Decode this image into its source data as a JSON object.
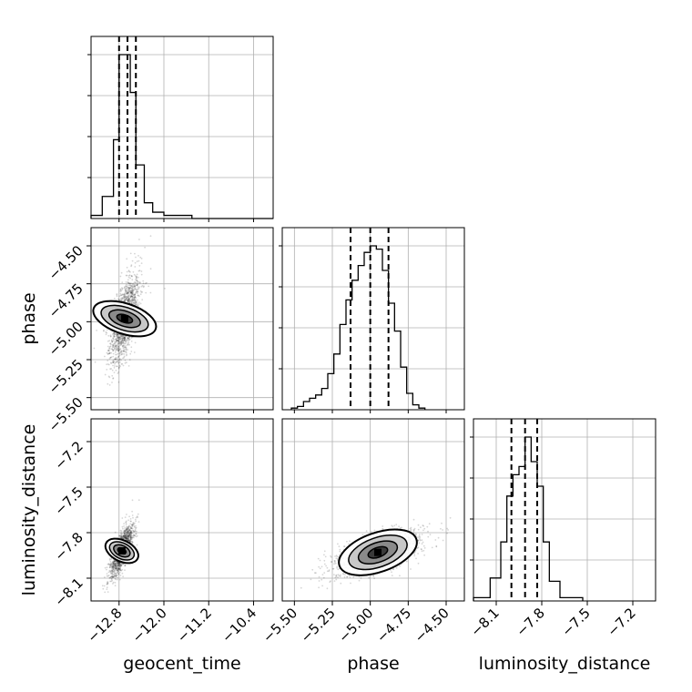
{
  "chart_data": {
    "type": "corner",
    "parameters": [
      "geocent_time",
      "phase",
      "luminosity_distance"
    ],
    "axis_labels": {
      "x": [
        "geocent_time",
        "phase",
        "luminosity_distance"
      ],
      "y": [
        "",
        "phase",
        "luminosity_distance"
      ]
    },
    "ranges": {
      "geocent_time": [
        -13.3,
        -10.05
      ],
      "phase": [
        -5.58,
        -4.38
      ],
      "luminosity_distance": [
        -8.25,
        -7.05
      ]
    },
    "ticks": {
      "geocent_time": [
        -12.8,
        -12.0,
        -11.2,
        -10.4
      ],
      "phase": [
        -5.5,
        -5.25,
        -5.0,
        -4.75,
        -4.5
      ],
      "luminosity_distance": [
        -8.1,
        -7.8,
        -7.5,
        -7.2
      ]
    },
    "tick_labels": {
      "geocent_time": [
        "−12.8",
        "−12.0",
        "−11.2",
        "−10.4"
      ],
      "phase": [
        "−5.50",
        "−5.25",
        "−5.00",
        "−4.75",
        "−4.50"
      ],
      "luminosity_distance": [
        "−8.1",
        "−7.8",
        "−7.5",
        "−7.2"
      ]
    },
    "quantiles": {
      "geocent_time": [
        -12.8,
        -12.65,
        -12.5
      ],
      "phase": [
        -5.13,
        -5.0,
        -4.88
      ],
      "luminosity_distance": [
        -8.0,
        -7.91,
        -7.83
      ]
    },
    "histograms": {
      "geocent_time": {
        "bins": [
          -13.3,
          -13.1,
          -12.9,
          -12.8,
          -12.7,
          -12.6,
          -12.5,
          -12.35,
          -12.2,
          -12.0,
          -11.5,
          -10.05
        ],
        "counts": [
          1,
          7,
          25,
          52,
          52,
          40,
          17,
          5,
          2,
          1,
          0
        ]
      },
      "phase": {
        "bins": [
          -5.52,
          -5.48,
          -5.44,
          -5.4,
          -5.36,
          -5.32,
          -5.28,
          -5.24,
          -5.2,
          -5.16,
          -5.12,
          -5.08,
          -5.04,
          -5.0,
          -4.96,
          -4.92,
          -4.88,
          -4.84,
          -4.8,
          -4.76,
          -4.72,
          -4.68,
          -4.64
        ],
        "counts": [
          1,
          2,
          5,
          7,
          9,
          13,
          22,
          34,
          52,
          67,
          79,
          88,
          96,
          100,
          98,
          85,
          65,
          48,
          26,
          10,
          3,
          1
        ]
      },
      "luminosity_distance": {
        "bins": [
          -8.25,
          -8.14,
          -8.07,
          -8.03,
          -7.99,
          -7.95,
          -7.91,
          -7.87,
          -7.83,
          -7.79,
          -7.75,
          -7.68,
          -7.53
        ],
        "counts": [
          2,
          14,
          36,
          64,
          77,
          82,
          100,
          85,
          70,
          36,
          12,
          2
        ]
      }
    },
    "pairs": [
      {
        "x": "geocent_time",
        "y": "phase",
        "center": [
          -12.7,
          -4.98
        ],
        "sigma": [
          0.13,
          0.14
        ],
        "rho": 0.6
      },
      {
        "x": "geocent_time",
        "y": "luminosity_distance",
        "center": [
          -12.75,
          -7.92
        ],
        "sigma": [
          0.1,
          0.08
        ],
        "rho": 0.75
      },
      {
        "x": "phase",
        "y": "luminosity_distance",
        "center": [
          -4.95,
          -7.93
        ],
        "sigma": [
          0.14,
          0.07
        ],
        "rho": 0.6
      }
    ],
    "grid": true,
    "colors": {
      "line": "#000000",
      "grid": "#b0b0b0",
      "points": "#000000"
    }
  }
}
